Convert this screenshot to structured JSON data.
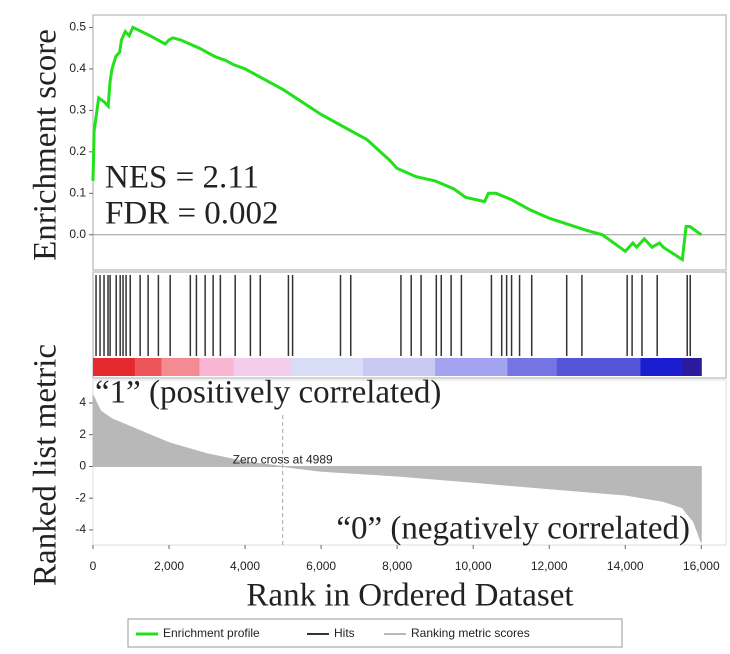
{
  "chart_data": [
    {
      "type": "line",
      "ylabel": "Enrichment score",
      "x": [
        0,
        30,
        150,
        300,
        400,
        450,
        500,
        600,
        700,
        750,
        850,
        950,
        1050,
        1500,
        1900,
        2000,
        2100,
        2300,
        2800,
        3200,
        3500,
        3700,
        4000,
        5000,
        6000,
        6600,
        7200,
        7800,
        8000,
        8500,
        9000,
        9500,
        9800,
        10300,
        10400,
        10600,
        11000,
        11500,
        12000,
        13000,
        13400,
        14000,
        14200,
        14300,
        14500,
        14700,
        14900,
        15000,
        15500,
        15600,
        15700,
        16000
      ],
      "series": [
        {
          "name": "Enrichment profile",
          "color": "#22e01a",
          "values": [
            0.13,
            0.25,
            0.33,
            0.32,
            0.31,
            0.37,
            0.4,
            0.43,
            0.44,
            0.47,
            0.49,
            0.48,
            0.5,
            0.48,
            0.46,
            0.47,
            0.475,
            0.47,
            0.45,
            0.43,
            0.42,
            0.41,
            0.4,
            0.35,
            0.29,
            0.26,
            0.23,
            0.18,
            0.16,
            0.14,
            0.13,
            0.11,
            0.09,
            0.08,
            0.1,
            0.1,
            0.085,
            0.06,
            0.04,
            0.01,
            0.0,
            -0.04,
            -0.02,
            -0.03,
            -0.01,
            -0.03,
            -0.02,
            -0.03,
            -0.06,
            0.02,
            0.02,
            0.0
          ]
        }
      ],
      "xlim": [
        0,
        16650
      ],
      "ylim": [
        -0.085,
        0.53
      ],
      "yticks": [
        {
          "value": 0,
          "label": "0.0"
        },
        0.1,
        0.2,
        0.3,
        0.4,
        0.5
      ],
      "annotations": [
        "NES = 2.11",
        "FDR = 0.002"
      ]
    },
    {
      "type": "rug",
      "series": [
        {
          "name": "Hits",
          "color": "#333333",
          "x": [
            80,
            185,
            290,
            395,
            450,
            610,
            715,
            790,
            870,
            980,
            1240,
            1450,
            1720,
            2030,
            2560,
            2720,
            2950,
            3160,
            3350,
            3740,
            4140,
            4400,
            5140,
            5250,
            6510,
            6780,
            8100,
            8370,
            8630,
            9030,
            9160,
            9420,
            9690,
            10480,
            10750,
            10880,
            11010,
            11220,
            11540,
            12460,
            12860,
            14050,
            14180,
            14440,
            14840,
            15630,
            15710
          ]
        }
      ],
      "colorbar": {
        "colors": [
          "#e42a2e",
          "#ee5558",
          "#f48a92",
          "#f9b6d3",
          "#f4cdec",
          "#d9dcf6",
          "#c9c9f4",
          "#a3a3ef",
          "#7474e2",
          "#5555d9",
          "#1c1cd0",
          "#2c1a9c"
        ],
        "edges": [
          0,
          1100,
          1800,
          2800,
          3700,
          5200,
          7100,
          9000,
          10900,
          12200,
          14400,
          15500,
          16000
        ]
      },
      "xlim": [
        0,
        16650
      ]
    },
    {
      "type": "area",
      "ylabel": "Ranked list metric",
      "xlabel": "Rank in Ordered Dataset",
      "x": [
        0,
        200,
        500,
        1000,
        2000,
        3000,
        4000,
        4989,
        6000,
        8000,
        10000,
        12000,
        14000,
        15000,
        15500,
        15800,
        16000
      ],
      "series": [
        {
          "name": "Ranking metric scores",
          "color": "#b8b8b8",
          "values": [
            4.5,
            3.5,
            3.0,
            2.5,
            1.5,
            0.8,
            0.3,
            0,
            -0.3,
            -0.6,
            -1.0,
            -1.4,
            -1.8,
            -2.2,
            -2.6,
            -3.5,
            -4.8
          ]
        }
      ],
      "xlim": [
        0,
        16650
      ],
      "ylim": [
        -4.95,
        5.45
      ],
      "yticks": [
        4,
        2,
        0,
        -2,
        -4
      ],
      "xticks": [
        0,
        {
          "value": 2000,
          "label": "2,000"
        },
        {
          "value": 4000,
          "label": "4,000"
        },
        {
          "value": 6000,
          "label": "6,000"
        },
        {
          "value": 8000,
          "label": "8,000"
        },
        {
          "value": 10000,
          "label": "10,000"
        },
        {
          "value": 12000,
          "label": "12,000"
        },
        {
          "value": 14000,
          "label": "14,000"
        },
        {
          "value": 16000,
          "label": "16,000"
        }
      ],
      "zero_cross": {
        "value": 4989,
        "label": "Zero cross at 4989"
      },
      "annotations": [
        {
          "text": "“1” (positively correlated)",
          "color": "#e0242a"
        },
        {
          "text": "“0” (negatively correlated)",
          "color": "#2a2ab8"
        }
      ]
    }
  ]
}
